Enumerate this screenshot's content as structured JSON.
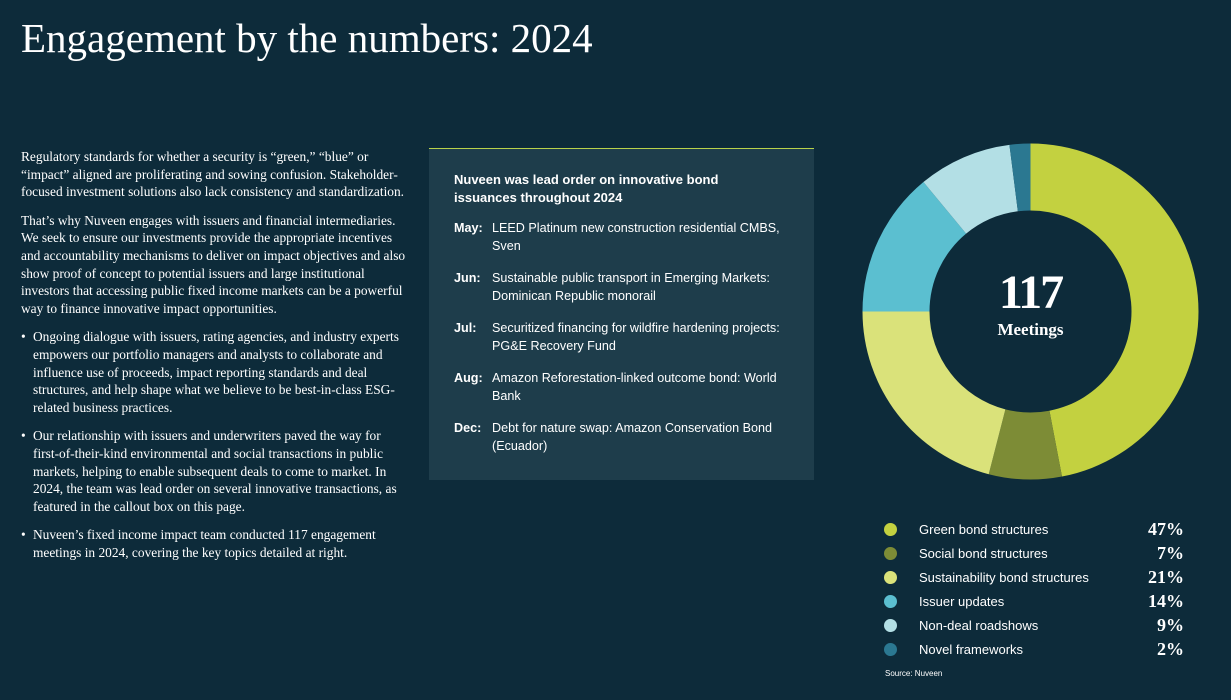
{
  "page": {
    "title": "Engagement by the numbers: 2024"
  },
  "intro": {
    "p1": "Regulatory standards for whether a security is “green,” “blue” or “impact” aligned are proliferating and sowing confusion. Stakeholder-focused investment solutions also lack consistency and standardization.",
    "p2": "That’s why Nuveen engages with issuers and financial intermediaries. We seek to ensure our investments provide the appropriate incentives and accountability mechanisms to deliver on impact objectives and also show proof of concept to potential issuers and large institutional investors that accessing public fixed income markets can be a powerful way to finance innovative impact opportunities.",
    "bullets": [
      "Ongoing dialogue with issuers, rating agencies, and industry experts empowers our portfolio managers and analysts to collaborate and influence use of proceeds, impact reporting standards and deal structures, and help shape what we believe to be best-in-class ESG-related business practices.",
      "Our relationship with issuers and underwriters paved the way for first-of-their-kind environmental and social transactions in public markets, helping to enable subsequent deals to come to market. In 2024, the team was lead order on several innovative transactions, as featured in the callout box on this page.",
      "Nuveen’s fixed income impact team conducted 117 engagement meetings in 2024, covering the key topics detailed at right."
    ]
  },
  "callout": {
    "title": "Nuveen was lead order on innovative bond issuances throughout 2024",
    "events": [
      {
        "month": "May:",
        "desc": "LEED Platinum new construction residential CMBS, Sven"
      },
      {
        "month": "Jun:",
        "desc": "Sustainable public transport in Emerging Markets: Dominican Republic monorail"
      },
      {
        "month": "Jul:",
        "desc": "Securitized financing for wildfire hardening projects: PG&E Recovery Fund"
      },
      {
        "month": "Aug:",
        "desc": "Amazon Reforestation-linked outcome bond: World Bank"
      },
      {
        "month": "Dec:",
        "desc": "Debt for nature swap: Amazon Conservation Bond (Ecuador)"
      }
    ]
  },
  "chart_data": {
    "type": "pie",
    "center_value": "117",
    "center_label": "Meetings",
    "slices": [
      {
        "label": "Green bond structures",
        "value": 47,
        "display": "47%",
        "color": "#c3d140"
      },
      {
        "label": "Social bond structures",
        "value": 7,
        "display": "7%",
        "color": "#7d8c36"
      },
      {
        "label": "Sustainability bond structures",
        "value": 21,
        "display": "21%",
        "color": "#dae27a"
      },
      {
        "label": "Issuer updates",
        "value": 14,
        "display": "14%",
        "color": "#5bbfd0"
      },
      {
        "label": "Non-deal roadshows",
        "value": 9,
        "display": "9%",
        "color": "#b3dfe5"
      },
      {
        "label": "Novel frameworks",
        "value": 2,
        "display": "2%",
        "color": "#2b7891"
      }
    ],
    "source": "Source: Nuveen"
  }
}
